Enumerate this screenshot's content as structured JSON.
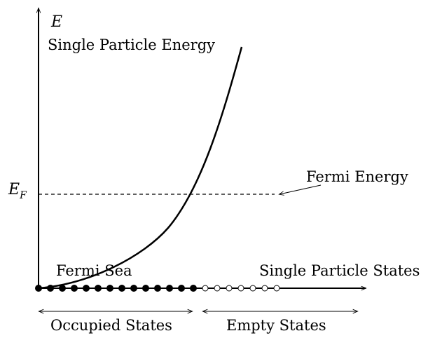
{
  "axis": {
    "y_symbol": "E",
    "y_label": "Single Particle Energy",
    "x_label": "Single Particle States"
  },
  "fermi": {
    "level_symbol": "E",
    "level_subscript": "F",
    "energy_label": "Fermi Energy",
    "sea_label": "Fermi Sea"
  },
  "states": {
    "occupied_label": "Occupied States",
    "empty_label": "Empty States",
    "occupied_count": 14,
    "empty_count": 7
  },
  "colors": {
    "ink": "#000000",
    "background": "#ffffff"
  }
}
